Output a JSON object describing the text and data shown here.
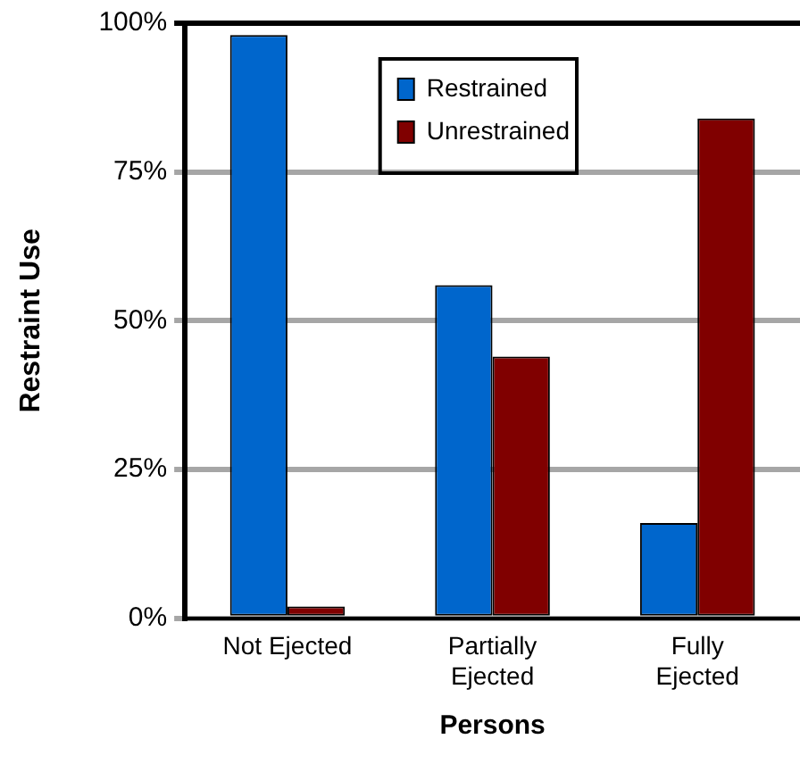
{
  "chart_data": {
    "type": "bar",
    "xlabel": "Persons",
    "ylabel": "Restraint Use",
    "categories": [
      "Not Ejected",
      "Partially\nEjected",
      "Fully\nEjected"
    ],
    "series": [
      {
        "name": "Restrained",
        "color": "#0066cc",
        "values": [
          98,
          56,
          16
        ]
      },
      {
        "name": "Unrestrained",
        "color": "#800000",
        "values": [
          2,
          44,
          84
        ]
      }
    ],
    "ylim": [
      0,
      100
    ],
    "yticks": [
      {
        "value": 0,
        "label": "0%"
      },
      {
        "value": 25,
        "label": "25%"
      },
      {
        "value": 50,
        "label": "50%"
      },
      {
        "value": 75,
        "label": "75%"
      },
      {
        "value": 100,
        "label": "100%"
      }
    ],
    "grid": "y",
    "legend": "top right"
  }
}
